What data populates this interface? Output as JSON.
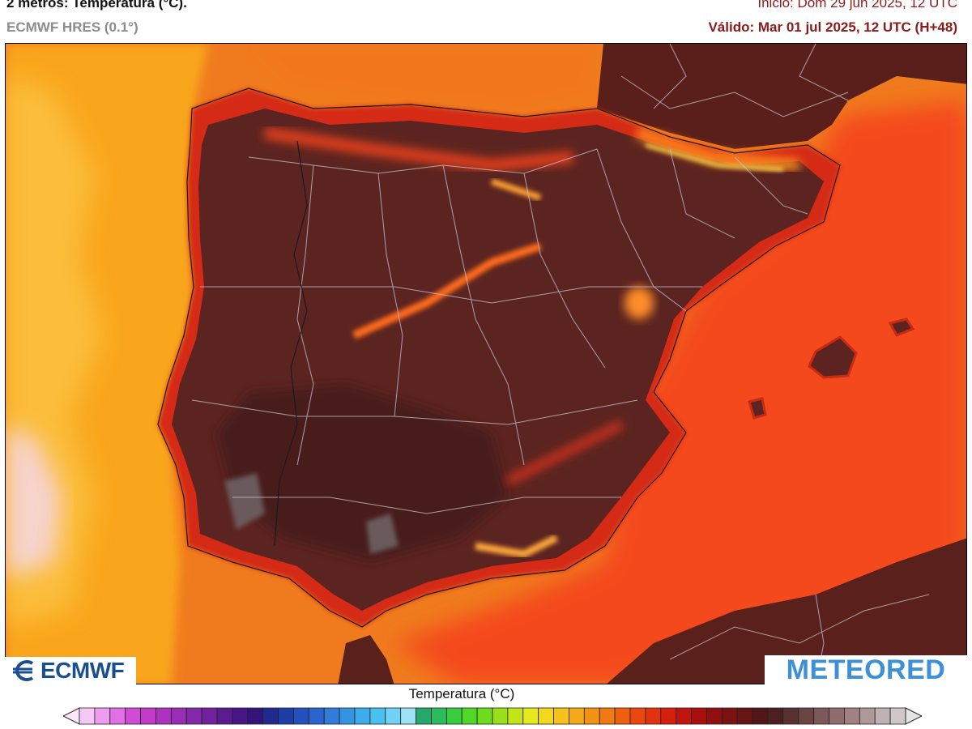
{
  "header": {
    "title": "2 metros: Temperatura (°C).",
    "model": "ECMWF HRES (0.1°)",
    "start": "Inicio: Dom 29 jun 2025, 12 UTC",
    "valid": "Válido: Mar 01 jul 2025, 12 UTC (H+48)"
  },
  "logos": {
    "left": "ECMWF",
    "right": "METEORED"
  },
  "legend": {
    "title": "Temperatura (°C)",
    "colors": [
      "#f5c8f5",
      "#ee9cee",
      "#e070e4",
      "#d04cd6",
      "#c43ac8",
      "#ae32c0",
      "#9a2cb6",
      "#8428aa",
      "#70229e",
      "#5c1c90",
      "#481684",
      "#341478",
      "#202a8e",
      "#1e3ea6",
      "#2450bc",
      "#2a64cc",
      "#307cd8",
      "#3494e2",
      "#3cacea",
      "#48c0f0",
      "#70d2f4",
      "#9ee2f6",
      "#26a86c",
      "#2cbc5c",
      "#38cc40",
      "#50d828",
      "#6edc1e",
      "#98e01a",
      "#c4e41a",
      "#e6e820",
      "#f2d81e",
      "#f4c21a",
      "#f4aa16",
      "#f29214",
      "#f07a12",
      "#ee6010",
      "#ea480e",
      "#e2320e",
      "#d4200e",
      "#c0140e",
      "#a8100e",
      "#901010",
      "#7a1212",
      "#661414",
      "#521616",
      "#4a2020",
      "#5a3030",
      "#6c4444",
      "#7e5858",
      "#906c6c",
      "#a08282",
      "#b09898",
      "#c0b2b2",
      "#d0c8c8"
    ]
  }
}
